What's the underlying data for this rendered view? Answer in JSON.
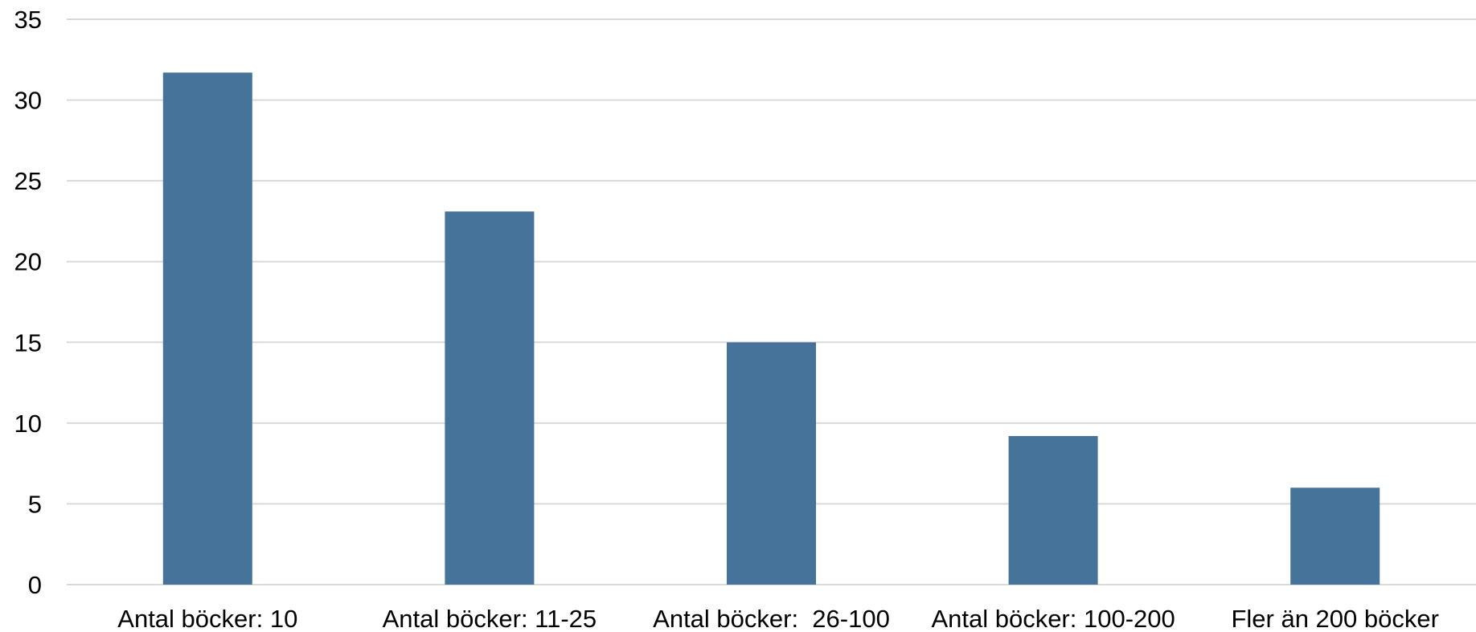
{
  "chart_data": {
    "type": "bar",
    "title": "",
    "xlabel": "",
    "ylabel": "",
    "categories": [
      "Antal böcker: 10",
      "Antal böcker: 11-25",
      "Antal böcker:  26-100",
      "Antal böcker: 100-200",
      "Fler än 200 böcker"
    ],
    "values": [
      31.7,
      23.1,
      15.0,
      9.2,
      6.0
    ],
    "ylim": [
      0,
      35
    ],
    "yticks": [
      0,
      5,
      10,
      15,
      20,
      25,
      30,
      35
    ],
    "grid": true,
    "legend": "none",
    "bar_color": "#467399"
  }
}
